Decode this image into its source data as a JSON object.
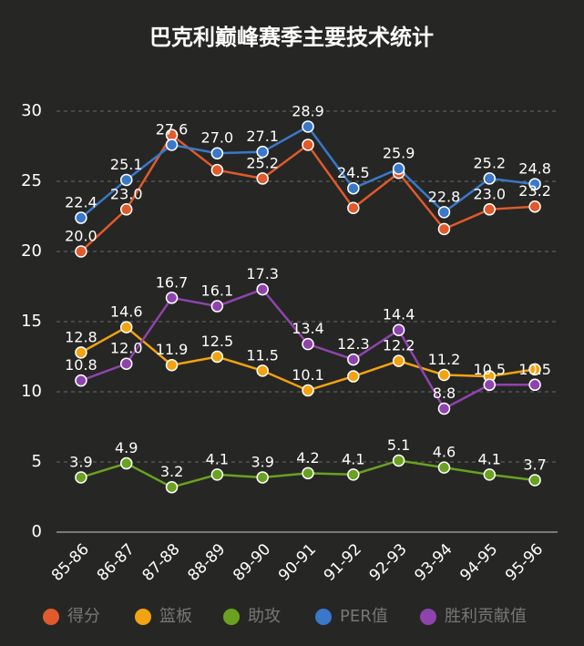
{
  "chart_data": {
    "type": "line",
    "title": "巴克利巅峰赛季主要技术统计",
    "categories": [
      "85-86",
      "86-87",
      "87-88",
      "88-89",
      "89-90",
      "90-91",
      "91-92",
      "92-93",
      "93-94",
      "94-95",
      "95-96"
    ],
    "ylim": [
      0,
      30
    ],
    "yticks": [
      0,
      5,
      10,
      15,
      20,
      25,
      30
    ],
    "grid": true,
    "legend": "bottom",
    "series": [
      {
        "name": "得分",
        "color": "#e05a2b",
        "values": [
          20.0,
          23.0,
          28.3,
          25.8,
          25.2,
          27.6,
          23.1,
          25.6,
          21.6,
          23.0,
          23.2
        ],
        "value_labels": [
          "20.0",
          "23.0",
          null,
          null,
          "25.2",
          null,
          null,
          null,
          null,
          "23.0",
          "23.2"
        ]
      },
      {
        "name": "篮板",
        "color": "#f2a30f",
        "values": [
          12.8,
          14.6,
          11.9,
          12.5,
          11.5,
          10.1,
          11.1,
          12.2,
          11.2,
          11.1,
          11.6
        ],
        "value_labels": [
          "12.8",
          "14.6",
          "11.9",
          "12.5",
          "11.5",
          "10.1",
          null,
          "12.2",
          "11.2",
          null,
          null
        ]
      },
      {
        "name": "助攻",
        "color": "#6aa121",
        "values": [
          3.9,
          4.9,
          3.2,
          4.1,
          3.9,
          4.2,
          4.1,
          5.1,
          4.6,
          4.1,
          3.7
        ],
        "value_labels": [
          "3.9",
          "4.9",
          "3.2",
          "4.1",
          "3.9",
          "4.2",
          "4.1",
          "5.1",
          "4.6",
          "4.1",
          "3.7"
        ]
      },
      {
        "name": "PER值",
        "color": "#3a78c9",
        "values": [
          22.4,
          25.1,
          27.6,
          27.0,
          27.1,
          28.9,
          24.5,
          25.9,
          22.8,
          25.2,
          24.8
        ],
        "value_labels": [
          "22.4",
          "25.1",
          "27.6",
          "27.0",
          "27.1",
          "28.9",
          "24.5",
          "25.9",
          "22.8",
          "25.2",
          "24.8"
        ]
      },
      {
        "name": "胜利贡献值",
        "color": "#8e44ad",
        "values": [
          10.8,
          12.0,
          16.7,
          16.1,
          17.3,
          13.4,
          12.3,
          14.4,
          8.8,
          10.5,
          10.5
        ],
        "value_labels": [
          "10.8",
          "12.0",
          "16.7",
          "16.1",
          "17.3",
          "13.4",
          "12.3",
          "14.4",
          "8.8",
          "10.5",
          "10.5"
        ]
      }
    ]
  }
}
